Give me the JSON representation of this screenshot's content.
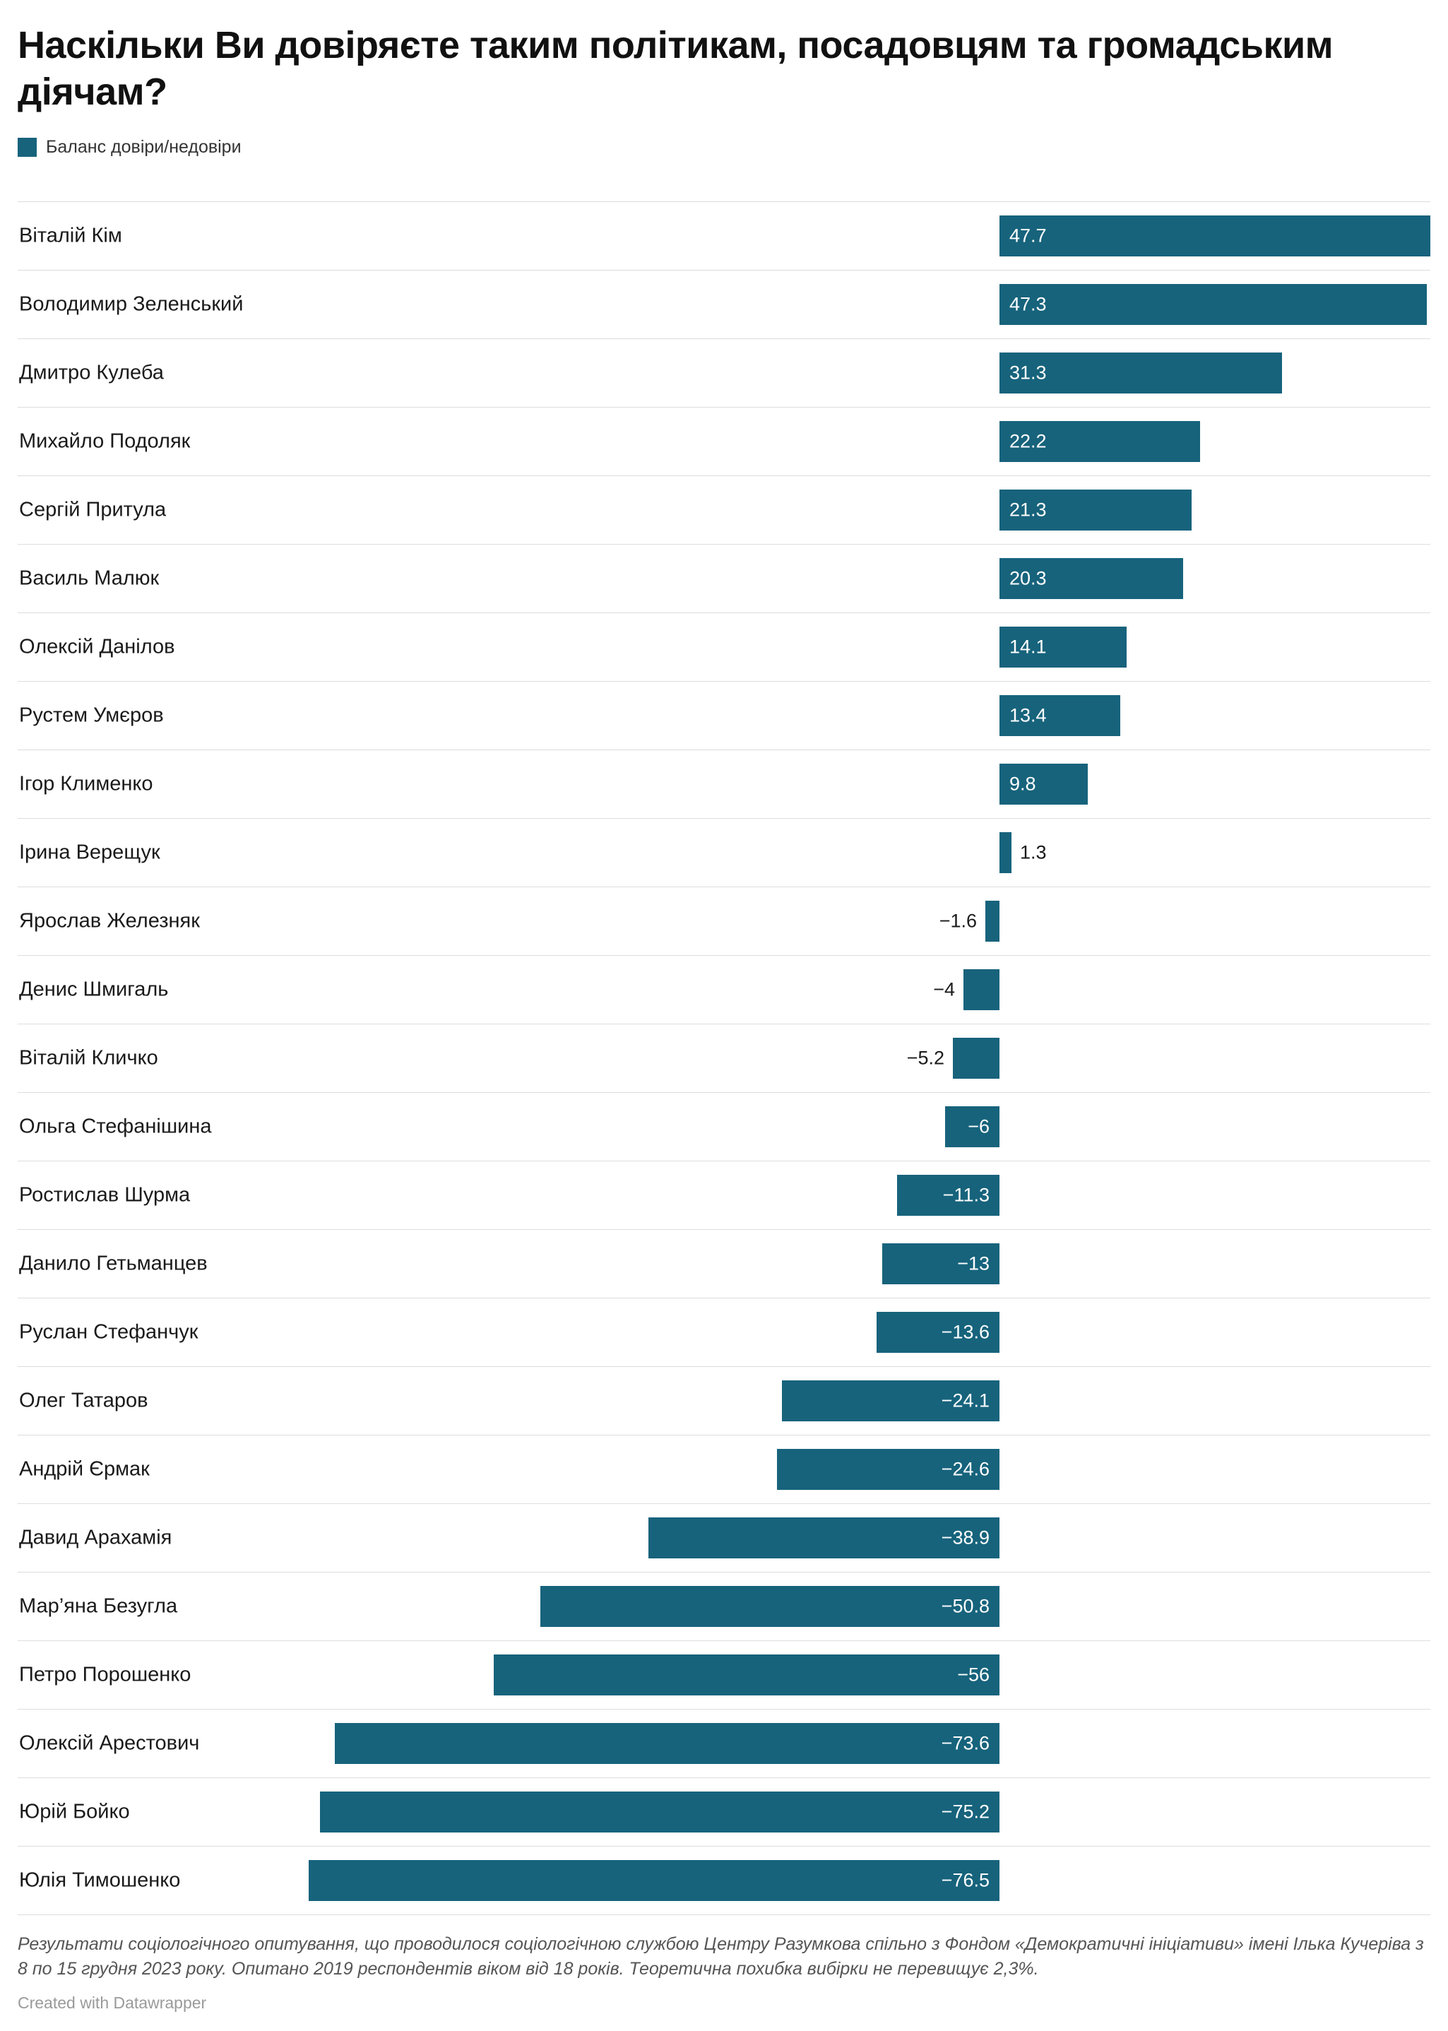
{
  "header": {
    "title": "Наскільки Ви довіряєте таким політикам, посадовцям та громадським діячам?"
  },
  "legend": {
    "label": "Баланс довіри/недовіри",
    "color": "#17637c"
  },
  "chart_data": {
    "type": "bar",
    "orientation": "horizontal",
    "title": "Наскільки Ви довіряєте таким політикам, посадовцям та громадським діячам?",
    "legend_entries": [
      "Баланс довіри/недовіри"
    ],
    "bar_color": "#17637c",
    "gridline_color": "#dddddd",
    "xlim": [
      -108.7,
      47.7
    ],
    "zero_fraction": 0.695,
    "categories": [
      "Віталій Кім",
      "Володимир Зеленський",
      "Дмитро Кулеба",
      "Михайло Подоляк",
      "Сергій Притула",
      "Василь Малюк",
      "Олексій Данілов",
      "Рустем Умєров",
      "Ігор Клименко",
      "Ірина Верещук",
      "Ярослав Железняк",
      "Денис Шмигаль",
      "Віталій Кличко",
      "Ольга Стефанішина",
      "Ростислав Шурма",
      "Данило Гетьманцев",
      "Руслан Стефанчук",
      "Олег Татаров",
      "Андрій Єрмак",
      "Давид Арахамія",
      "Мар’яна Безугла",
      "Петро Порошенко",
      "Олексій Арестович",
      "Юрій Бойко",
      "Юлія Тимошенко"
    ],
    "values": [
      47.7,
      47.3,
      31.3,
      22.2,
      21.3,
      20.3,
      14.1,
      13.4,
      9.8,
      1.3,
      -1.6,
      -4,
      -5.2,
      -6,
      -11.3,
      -13,
      -13.6,
      -24.1,
      -24.6,
      -38.9,
      -50.8,
      -56,
      -73.6,
      -75.2,
      -76.5
    ],
    "value_labels": [
      "47.7",
      "47.3",
      "31.3",
      "22.2",
      "21.3",
      "20.3",
      "14.1",
      "13.4",
      "9.8",
      "1.3",
      "−1.6",
      "−4",
      "−5.2",
      "−6",
      "−11.3",
      "−13",
      "−13.6",
      "−24.1",
      "−24.6",
      "−38.9",
      "−50.8",
      "−56",
      "−73.6",
      "−75.2",
      "−76.5"
    ]
  },
  "footer": {
    "note": "Результати соціологічного опитування, що проводилося соціологічною службою Центру Разумкова спільно з Фондом «Демократичні ініціативи» імені Ілька Кучеріва з 8 по 15 грудня 2023 року. Опитано 2019 респондентів віком від 18 років. Теоретична похибка вибірки не перевищує 2,3%.",
    "credit": "Created with Datawrapper"
  }
}
